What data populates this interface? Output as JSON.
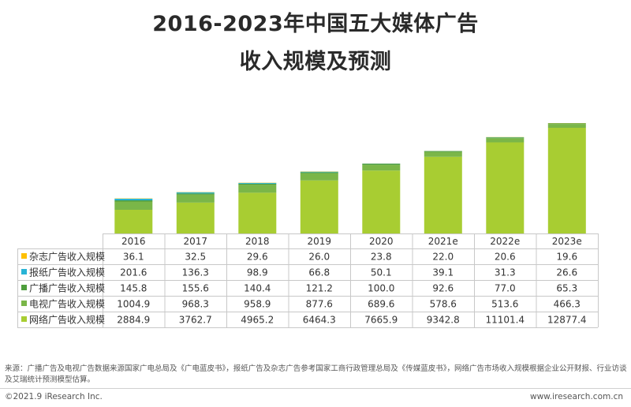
{
  "title_line1": "2016-2023年中国五大媒体广告",
  "title_line2": "收入规模及预测",
  "chart_data": {
    "type": "bar",
    "stacked": true,
    "categories": [
      "2016",
      "2017",
      "2018",
      "2019",
      "2020",
      "2021e",
      "2022e",
      "2023e"
    ],
    "series": [
      {
        "name": "杂志广告收入规模",
        "color": "#ffc000",
        "values": [
          "36.1",
          "32.5",
          "29.6",
          "26.0",
          "23.8",
          "22.0",
          "20.6",
          "19.6"
        ]
      },
      {
        "name": "报纸广告收入规模",
        "color": "#28b4d6",
        "values": [
          "201.6",
          "136.3",
          "98.9",
          "66.8",
          "50.1",
          "39.1",
          "31.3",
          "26.6"
        ]
      },
      {
        "name": "广播广告收入规模",
        "color": "#4e9e3c",
        "values": [
          "145.8",
          "155.6",
          "140.4",
          "121.2",
          "100.0",
          "92.6",
          "77.0",
          "65.3"
        ]
      },
      {
        "name": "电视广告收入规模",
        "color": "#7ab648",
        "values": [
          "1004.9",
          "968.3",
          "958.9",
          "877.6",
          "689.6",
          "578.6",
          "513.6",
          "466.3"
        ]
      },
      {
        "name": "网络广告收入规模",
        "color": "#a8cd32",
        "values": [
          "2884.9",
          "3762.7",
          "4965.2",
          "6464.3",
          "7665.9",
          "9342.8",
          "11101.4",
          "12877.4"
        ]
      }
    ],
    "legend_placement": "data-table",
    "grid": false
  },
  "source_text": "来源：广播广告及电视广告数据来源国家广电总局及《广电蓝皮书》，报纸广告及杂志广告参考国家工商行政管理总局及《传媒蓝皮书》，网络广告市场收入规模根据企业公开财报、行业访谈及艾瑞统计预测模型估算。",
  "copyright": "©2021.9 iResearch Inc.",
  "website": "www.iresearch.com.cn"
}
